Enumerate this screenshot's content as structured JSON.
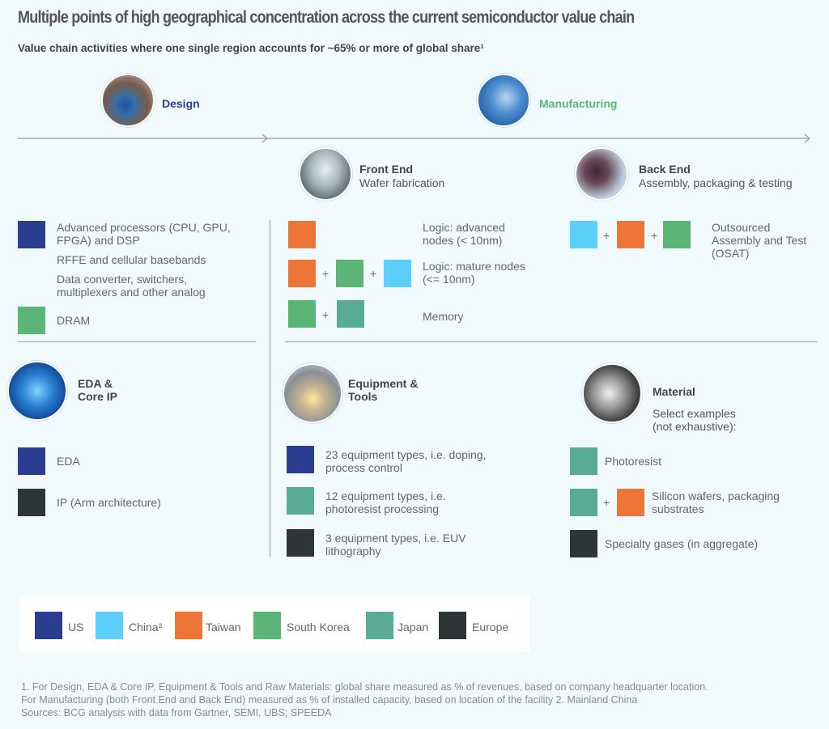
{
  "title": "Multiple points of high geographical concentration across the current semiconductor value chain",
  "subtitle": "Value chain activities where one single region accounts for ~65% or more of global share¹",
  "colors": {
    "US": "#2a3d8f",
    "China": "#5ccffa",
    "Taiwan": "#ec7537",
    "South Korea": "#5bb577",
    "Japan": "#5aab94",
    "Europe": "#2f3436"
  },
  "stages": {
    "design": "Design",
    "manufacturing": "Manufacturing"
  },
  "front_end": {
    "title": "Front End",
    "subtitle": "Wafer fabrication",
    "rows": [
      {
        "label": "Logic: advanced nodes (< 10nm)",
        "regions": [
          "Taiwan"
        ]
      },
      {
        "label": "Logic: mature nodes (<= 10nm)",
        "regions": [
          "Taiwan",
          "South Korea",
          "China"
        ]
      },
      {
        "label": "Memory",
        "regions": [
          "South Korea",
          "Japan"
        ]
      }
    ]
  },
  "back_end": {
    "title": "Back End",
    "subtitle": "Assembly, packaging & testing",
    "rows": [
      {
        "label": "Outsourced Assembly and Test (OSAT)",
        "regions": [
          "China",
          "Taiwan",
          "South Korea"
        ]
      }
    ]
  },
  "design": {
    "rows": [
      {
        "label": "Advanced processors (CPU, GPU, FPGA) and DSP",
        "regions": [
          "US"
        ]
      },
      {
        "label": "RFFE and cellular basebands",
        "regions": []
      },
      {
        "label": "Data converter, switchers, multiplexers and other analog",
        "regions": []
      },
      {
        "label": "DRAM",
        "regions": [
          "South Korea"
        ]
      }
    ]
  },
  "eda": {
    "title": "EDA & Core IP",
    "rows": [
      {
        "label": "EDA",
        "regions": [
          "US"
        ]
      },
      {
        "label": "IP (Arm architecture)",
        "regions": [
          "Europe"
        ]
      }
    ]
  },
  "equipment": {
    "title": "Equipment & Tools",
    "rows": [
      {
        "label": "23 equipment types, i.e. doping, process control",
        "regions": [
          "US"
        ]
      },
      {
        "label": "12 equipment types, i.e. photoresist processing",
        "regions": [
          "Japan"
        ]
      },
      {
        "label": "3 equipment types, i.e. EUV lithography",
        "regions": [
          "Europe"
        ]
      }
    ]
  },
  "material": {
    "title": "Material",
    "subtitle": "Select examples (not exhaustive):",
    "rows": [
      {
        "label": "Photoresist",
        "regions": [
          "Japan"
        ]
      },
      {
        "label": "Silicon wafers, packaging substrates",
        "regions": [
          "Japan",
          "Taiwan"
        ]
      },
      {
        "label": "Specialty gases (in aggregate)",
        "regions": [
          "Europe"
        ]
      }
    ]
  },
  "legend": [
    "US",
    "China²",
    "Taiwan",
    "South Korea",
    "Japan",
    "Europe"
  ],
  "plus": "+",
  "footnotes": [
    "1. For Design, EDA & Core IP, Equipment & Tools and Raw Materials: global share measured as % of revenues, based on company headquarter location.",
    "For Manufacturing (both Front End and Back End) measured as % of installed capacity, based on location of the facility  2. Mainland China",
    "Sources: BCG analysis with data from Gartner, SEMI, UBS; SPEEDA"
  ]
}
